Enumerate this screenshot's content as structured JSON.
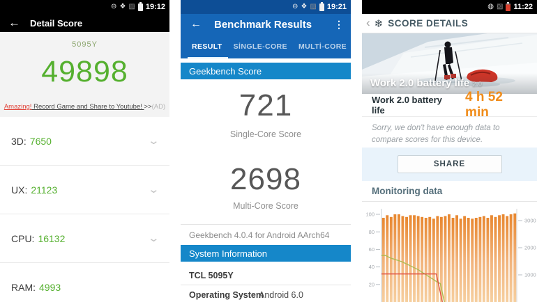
{
  "left": {
    "status": {
      "time": "19:12"
    },
    "header": {
      "back": "←",
      "title": "Detail Score"
    },
    "device": "5095Y",
    "score": "49898",
    "ad": {
      "highlight": "Amazing!",
      "text": " Record Game and Share to Youtube! ",
      "arrows": ">>",
      "tag": "(AD)"
    },
    "rows": [
      {
        "label": "3D:",
        "value": "7650"
      },
      {
        "label": "UX:",
        "value": "21123"
      },
      {
        "label": "CPU:",
        "value": "16132"
      },
      {
        "label": "RAM:",
        "value": "4993"
      }
    ],
    "chevron": "⌄"
  },
  "middle": {
    "status": {
      "time": "19:21"
    },
    "header": {
      "back": "←",
      "title": "Benchmark Results",
      "menu": "⋮"
    },
    "tabs": [
      {
        "label": "RESULT"
      },
      {
        "label": "SİNGLE-CORE"
      },
      {
        "label": "MULTİ-CORE"
      }
    ],
    "section1": "Geekbench Score",
    "scores": [
      {
        "value": "721",
        "label": "Single-Core Score"
      },
      {
        "value": "2698",
        "label": "Multi-Core Score"
      }
    ],
    "version": "Geekbench 4.0.4 for Android AArch64",
    "section2": "System Information",
    "device": "TCL 5095Y",
    "info": [
      {
        "label": "Operating System",
        "value": "Android 6.0"
      }
    ]
  },
  "right": {
    "status": {
      "time": "11:22"
    },
    "header": {
      "back": "‹",
      "logo": "❄",
      "title": "SCORE DETAILS"
    },
    "hero_title": "Work 2.0 battery life",
    "hero_badge": "2.0",
    "result": {
      "label": "Work 2.0 battery life",
      "value": "4 h 52 min"
    },
    "note": "Sorry, we don't have enough data to compare scores for this device.",
    "share_label": "SHARE",
    "monitoring_title": "Monitoring data"
  },
  "colors": {
    "antutu_green": "#55b02f",
    "geekbench_blue": "#1566b7",
    "geekbench_section_blue": "#1587c9",
    "pcmark_orange": "#f08c1a"
  },
  "chart_data": {
    "type": "bar",
    "title": "Monitoring data",
    "left_axis": {
      "ticks": [
        20,
        40,
        60,
        80,
        100
      ],
      "range": [
        0,
        114
      ]
    },
    "right_axis": {
      "ticks": [
        1000,
        2000,
        3000
      ],
      "range": [
        0,
        3690
      ]
    },
    "grid": false,
    "legend": "none",
    "bars": {
      "name": "performance",
      "axis": "left",
      "color_top": "#e8872f",
      "color_bottom": "#f6cf9f",
      "values": [
        96,
        99,
        97,
        100,
        100,
        98,
        97,
        99,
        99,
        98,
        97,
        96,
        97,
        95,
        98,
        97,
        98,
        100,
        96,
        99,
        95,
        98,
        96,
        95,
        96,
        97,
        98,
        96,
        99,
        97,
        99,
        100,
        98,
        100,
        101
      ]
    },
    "lines": [
      {
        "name": "battery-level",
        "color": "#a9bb4f",
        "points": [
          [
            0,
            53
          ],
          [
            0.03,
            53
          ],
          [
            0.07,
            50
          ],
          [
            0.11,
            48
          ],
          [
            0.15,
            46
          ],
          [
            0.19,
            43
          ],
          [
            0.23,
            40
          ],
          [
            0.27,
            37
          ],
          [
            0.31,
            33
          ],
          [
            0.35,
            29
          ],
          [
            0.38,
            26
          ],
          [
            0.41,
            23
          ],
          [
            0.435,
            21
          ],
          [
            0.465,
            0
          ]
        ]
      },
      {
        "name": "temperature",
        "color": "#df4f41",
        "points": [
          [
            0,
            32
          ],
          [
            0.405,
            32
          ],
          [
            0.45,
            0
          ]
        ]
      }
    ]
  }
}
